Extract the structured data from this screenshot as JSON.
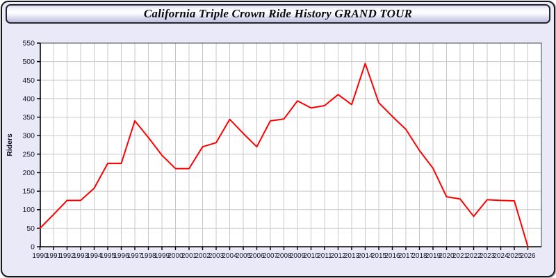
{
  "header": {
    "title": "California Triple Crown Ride History GRAND TOUR"
  },
  "colors": {
    "page_background": "#e9e9f8",
    "plot_background": "#ffffff",
    "grid_line": "#c9c9c9",
    "axis_line": "#000000",
    "tick_label": "#15152a",
    "series_red": "#ff0000"
  },
  "chart_data": {
    "type": "line",
    "title": "California Triple Crown Ride History GRAND TOUR",
    "xlabel": "",
    "ylabel": "Riders",
    "x": [
      1990,
      1991,
      1992,
      1993,
      1994,
      1995,
      1996,
      1997,
      1998,
      1999,
      2000,
      2001,
      2002,
      2003,
      2004,
      2005,
      2006,
      2007,
      2008,
      2009,
      2010,
      2011,
      2012,
      2013,
      2014,
      2015,
      2016,
      2017,
      2018,
      2019,
      2020,
      2021,
      2022,
      2023,
      2024,
      2025,
      2026
    ],
    "series": [
      {
        "name": "Riders",
        "color": "#ff0000",
        "values": [
          50,
          87,
          125,
          125,
          158,
          225,
          225,
          340,
          295,
          247,
          211,
          211,
          270,
          281,
          344,
          306,
          270,
          340,
          345,
          394,
          375,
          381,
          411,
          384,
          495,
          389,
          352,
          317,
          260,
          212,
          135,
          129,
          82,
          127,
          125,
          124,
          0
        ]
      }
    ],
    "ylim": [
      0,
      550
    ],
    "ytick_step": 50,
    "xlim": [
      1990,
      2027
    ],
    "grid": true,
    "legend_position": "none"
  }
}
